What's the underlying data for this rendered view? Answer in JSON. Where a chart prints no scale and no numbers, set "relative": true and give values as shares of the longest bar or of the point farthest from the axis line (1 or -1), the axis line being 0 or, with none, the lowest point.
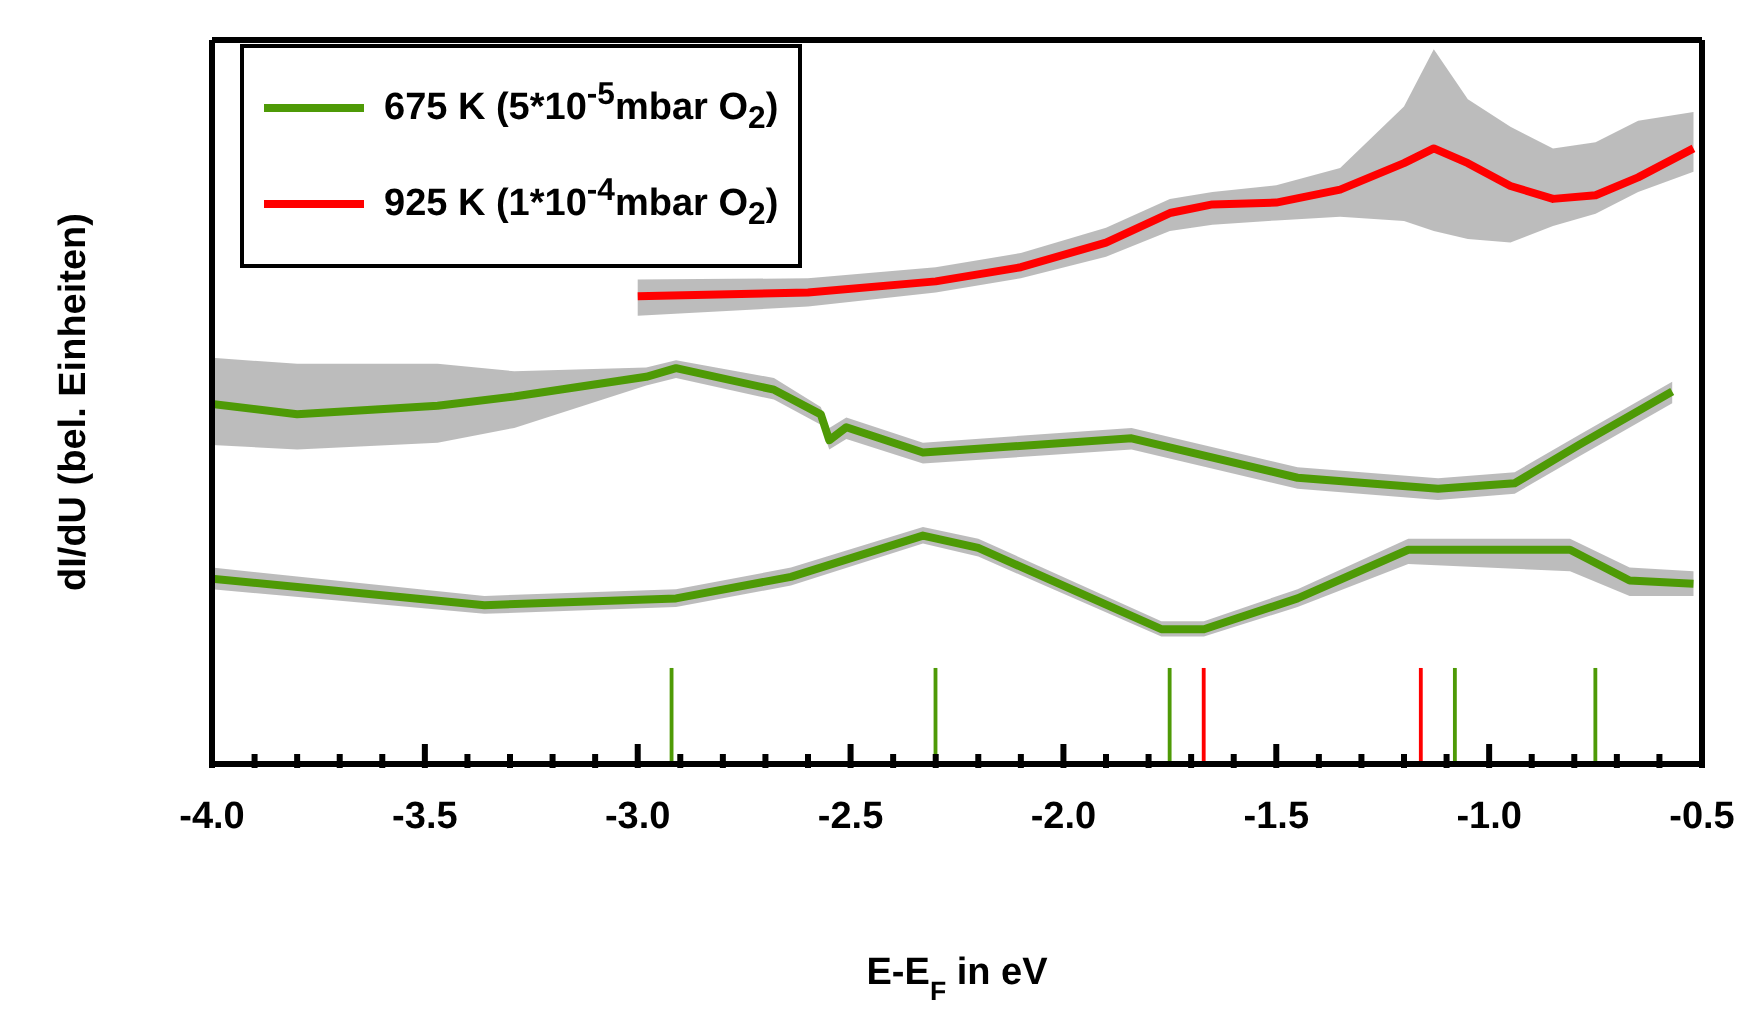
{
  "chart_data": {
    "type": "line",
    "relative": true,
    "xlabel": "E-E$_{F}$ in eV",
    "ylabel": "dI/dU (bel. Einheiten)",
    "legend": "top left",
    "xlim": [
      -4.0,
      -0.5
    ],
    "xticks": [
      {
        "value": -4.0,
        "label": "-4.0"
      },
      {
        "value": -3.9,
        "label": null
      },
      {
        "value": -3.8,
        "label": null
      },
      {
        "value": -3.7,
        "label": null
      },
      {
        "value": -3.6,
        "label": null
      },
      {
        "value": -3.5,
        "label": "-3.5"
      },
      {
        "value": -3.4,
        "label": null
      },
      {
        "value": -3.3,
        "label": null
      },
      {
        "value": -3.2,
        "label": null
      },
      {
        "value": -3.1,
        "label": null
      },
      {
        "value": -3.0,
        "label": "-3.0"
      },
      {
        "value": -2.9,
        "label": null
      },
      {
        "value": -2.8,
        "label": null
      },
      {
        "value": -2.7,
        "label": null
      },
      {
        "value": -2.6,
        "label": null
      },
      {
        "value": -2.5,
        "label": "-2.5"
      },
      {
        "value": -2.4,
        "label": null
      },
      {
        "value": -2.3,
        "label": null
      },
      {
        "value": -2.2,
        "label": null
      },
      {
        "value": -2.1,
        "label": null
      },
      {
        "value": -2.0,
        "label": "-2.0"
      },
      {
        "value": -1.9,
        "label": null
      },
      {
        "value": -1.8,
        "label": null
      },
      {
        "value": -1.7,
        "label": null
      },
      {
        "value": -1.6,
        "label": null
      },
      {
        "value": -1.5,
        "label": "-1.5"
      },
      {
        "value": -1.4,
        "label": null
      },
      {
        "value": -1.3,
        "label": null
      },
      {
        "value": -1.2,
        "label": null
      },
      {
        "value": -1.1,
        "label": null
      },
      {
        "value": -1.0,
        "label": "-1.0"
      },
      {
        "value": -0.9,
        "label": null
      },
      {
        "value": -0.8,
        "label": null
      },
      {
        "value": -0.7,
        "label": null
      },
      {
        "value": -0.6,
        "label": null
      },
      {
        "value": -0.5,
        "label": "-0.5"
      }
    ],
    "series": [
      {
        "name": "675 K (5*10$^{-5}$mbar O$_{2}$)",
        "color": "#4e9a06",
        "x": [
          -4.0,
          -3.8,
          -3.47,
          -3.29,
          -2.98,
          -2.91,
          -2.68,
          -2.57,
          -2.55,
          -2.51,
          -2.33,
          -1.84,
          -1.45,
          -1.12,
          -0.94,
          -0.79,
          -0.57
        ],
        "values": [
          0.585,
          0.568,
          0.582,
          0.597,
          0.629,
          0.643,
          0.608,
          0.568,
          0.526,
          0.547,
          0.506,
          0.529,
          0.465,
          0.447,
          0.456,
          0.518,
          0.605
        ],
        "lower": [
          0.518,
          0.511,
          0.522,
          0.546,
          0.615,
          0.627,
          0.592,
          0.551,
          0.511,
          0.528,
          0.488,
          0.511,
          0.447,
          0.429,
          0.439,
          0.499,
          0.586
        ],
        "upper": [
          0.66,
          0.65,
          0.65,
          0.638,
          0.644,
          0.656,
          0.627,
          0.58,
          0.546,
          0.563,
          0.522,
          0.546,
          0.482,
          0.464,
          0.474,
          0.534,
          0.621
        ]
      },
      {
        "name": "925 K (1*10$^{-4}$mbar O$_{2}$)",
        "color": "#ff0000",
        "x": [
          -3.0,
          -2.6,
          -2.3,
          -2.1,
          -1.9,
          -1.75,
          -1.65,
          -1.5,
          -1.35,
          -1.2,
          -1.13,
          -1.05,
          -0.95,
          -0.85,
          -0.75,
          -0.65,
          -0.52
        ],
        "values": [
          0.76,
          0.766,
          0.784,
          0.807,
          0.847,
          0.895,
          0.909,
          0.912,
          0.933,
          0.976,
          1.0,
          0.976,
          0.939,
          0.918,
          0.924,
          0.953,
          1.0
        ],
        "lower": [
          0.728,
          0.743,
          0.766,
          0.789,
          0.824,
          0.866,
          0.876,
          0.883,
          0.889,
          0.882,
          0.866,
          0.853,
          0.847,
          0.874,
          0.894,
          0.929,
          0.962
        ],
        "upper": [
          0.787,
          0.789,
          0.807,
          0.83,
          0.871,
          0.918,
          0.929,
          0.94,
          0.968,
          1.068,
          1.161,
          1.08,
          1.035,
          1.0,
          1.01,
          1.045,
          1.059
        ]
      },
      {
        "color": "#4e9a06",
        "x": [
          -4.0,
          -3.36,
          -2.91,
          -2.64,
          -2.33,
          -2.2,
          -1.77,
          -1.67,
          -1.45,
          -1.19,
          -0.81,
          -0.67,
          -0.52
        ],
        "values": [
          0.301,
          0.258,
          0.269,
          0.304,
          0.371,
          0.351,
          0.219,
          0.219,
          0.269,
          0.348,
          0.348,
          0.298,
          0.293
        ],
        "lower": [
          0.284,
          0.244,
          0.255,
          0.29,
          0.358,
          0.337,
          0.207,
          0.207,
          0.255,
          0.325,
          0.313,
          0.273,
          0.273
        ],
        "upper": [
          0.319,
          0.273,
          0.284,
          0.319,
          0.385,
          0.366,
          0.232,
          0.232,
          0.284,
          0.366,
          0.366,
          0.319,
          0.313
        ]
      },
      {
        "type": "bar",
        "x": [
          -2.92,
          -2.3,
          -1.75,
          -1.67,
          -1.16,
          -1.08,
          -0.75
        ],
        "values": [
          0.156,
          0.156,
          0.156,
          0.156,
          0.156,
          0.156,
          0.156
        ],
        "colors": [
          "#4e9a06",
          "#4e9a06",
          "#4e9a06",
          "#ff0000",
          "#ff0000",
          "#4e9a06",
          "#4e9a06"
        ]
      }
    ]
  }
}
